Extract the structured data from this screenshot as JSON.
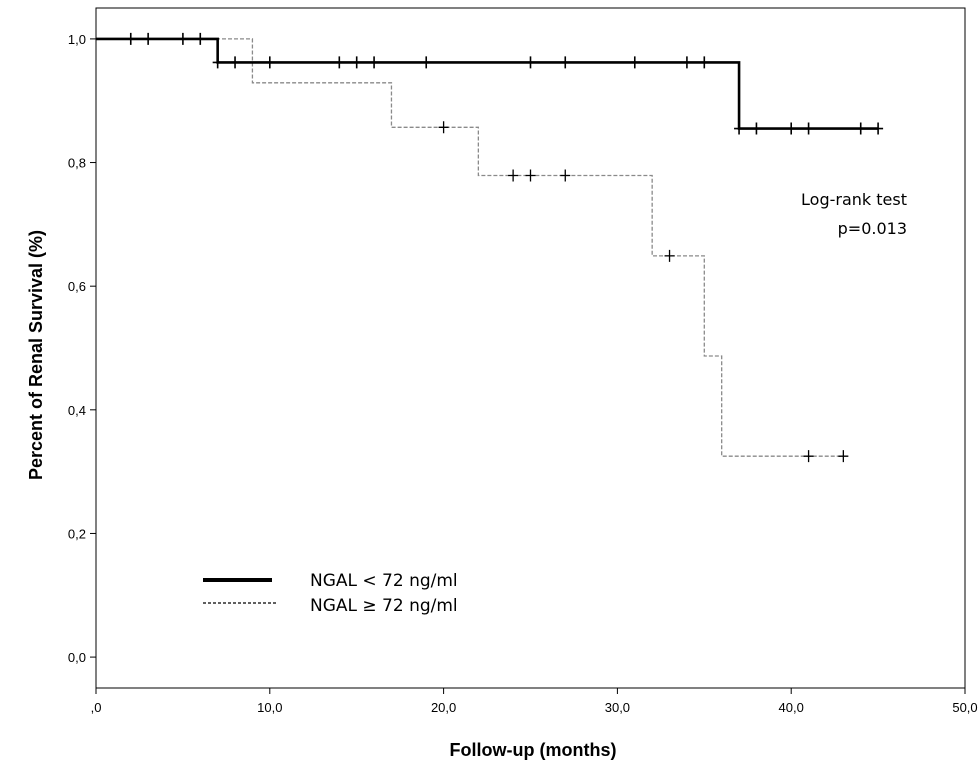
{
  "chart_data": {
    "type": "line",
    "subtype": "kaplan-meier",
    "title": "",
    "xlabel": "Follow-up (months)",
    "ylabel": "Percent of Renal Survival (%)",
    "xlim": [
      0,
      50
    ],
    "ylim": [
      -0.05,
      1.05
    ],
    "x_ticks": [
      0,
      10,
      20,
      30,
      40,
      50
    ],
    "x_tick_labels": [
      ",0",
      "10,0",
      "20,0",
      "30,0",
      "40,0",
      "50,0"
    ],
    "y_ticks": [
      0,
      0.2,
      0.4,
      0.6,
      0.8,
      1.0
    ],
    "y_tick_labels": [
      "0,0",
      "0,2",
      "0,4",
      "0,6",
      "0,8",
      "1,0"
    ],
    "grid": false,
    "annotation": [
      "Log-rank test",
      "p=0.013"
    ],
    "series": [
      {
        "name": "NGAL < 72 ng/ml",
        "style": "solid",
        "color": "#000000",
        "steps": [
          [
            0,
            1.0
          ],
          [
            7,
            0.962
          ],
          [
            37,
            0.855
          ],
          [
            45,
            0.855
          ]
        ],
        "censored": [
          [
            2,
            1.0
          ],
          [
            3,
            1.0
          ],
          [
            5,
            1.0
          ],
          [
            6,
            1.0
          ],
          [
            7,
            0.962
          ],
          [
            8,
            0.962
          ],
          [
            10,
            0.962
          ],
          [
            14,
            0.962
          ],
          [
            15,
            0.962
          ],
          [
            16,
            0.962
          ],
          [
            19,
            0.962
          ],
          [
            25,
            0.962
          ],
          [
            27,
            0.962
          ],
          [
            31,
            0.962
          ],
          [
            34,
            0.962
          ],
          [
            35,
            0.962
          ],
          [
            37,
            0.855
          ],
          [
            38,
            0.855
          ],
          [
            40,
            0.855
          ],
          [
            41,
            0.855
          ],
          [
            44,
            0.855
          ],
          [
            45,
            0.855
          ]
        ]
      },
      {
        "name": "NGAL ≥ 72 ng/ml",
        "style": "dashed",
        "color": "#8a8a8a",
        "steps": [
          [
            0,
            1.0
          ],
          [
            9,
            0.929
          ],
          [
            17,
            0.857
          ],
          [
            22,
            0.779
          ],
          [
            32,
            0.649
          ],
          [
            35,
            0.487
          ],
          [
            36,
            0.325
          ],
          [
            43,
            0.325
          ]
        ],
        "censored": [
          [
            20,
            0.857
          ],
          [
            24,
            0.779
          ],
          [
            25,
            0.779
          ],
          [
            27,
            0.779
          ],
          [
            33,
            0.649
          ],
          [
            41,
            0.325
          ],
          [
            43,
            0.325
          ]
        ]
      }
    ]
  }
}
